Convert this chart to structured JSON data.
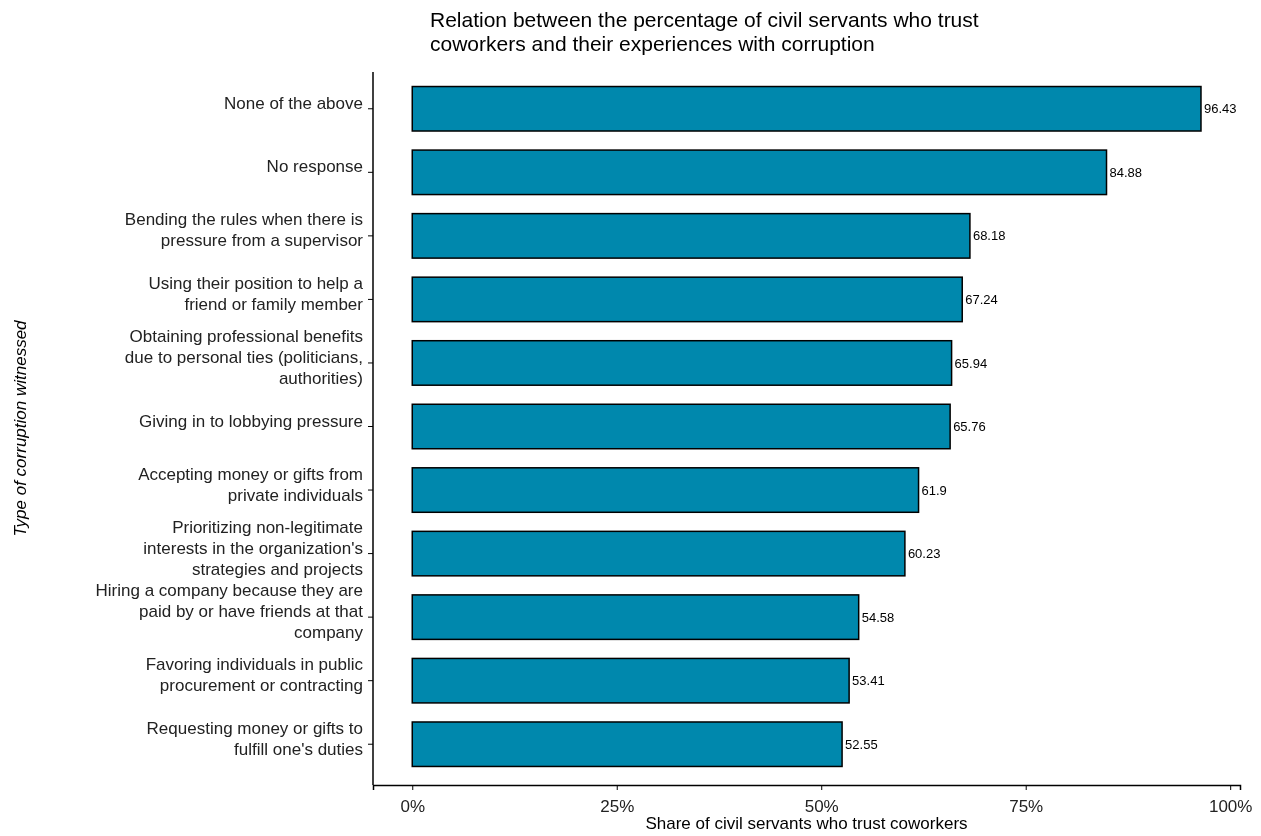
{
  "chart_data": {
    "type": "bar",
    "orientation": "horizontal",
    "title": "Relation between the percentage of civil servants who trust\ncoworkers and their experiences with corruption",
    "xlabel": "Share of civil servants who trust coworkers",
    "ylabel": "Type of corruption witnessed",
    "categories": [
      "None of the above",
      "No response",
      "Bending the rules when there is\npressure from a supervisor",
      "Using their position to help a\nfriend or family member",
      "Obtaining professional benefits\ndue to personal ties (politicians,\nauthorities)",
      "Giving in to lobbying pressure",
      "Accepting money or gifts from\nprivate individuals",
      "Prioritizing non-legitimate\ninterests in the organization's\nstrategies and projects",
      "Hiring a company because they are\npaid by or have friends at that\ncompany",
      "Favoring individuals in public\nprocurement or contracting",
      "Requesting money or gifts to\nfulfill one's duties"
    ],
    "values": [
      96.43,
      84.88,
      68.18,
      67.24,
      65.94,
      65.76,
      61.9,
      60.23,
      54.58,
      53.41,
      52.55
    ],
    "color": "#0088ad",
    "data_labels": true,
    "grid": false,
    "xlim": [
      -4.8,
      101.2
    ],
    "xticks": [
      {
        "value": 0,
        "label": "0%"
      },
      {
        "value": 25,
        "label": "25%"
      },
      {
        "value": 50,
        "label": "50%"
      },
      {
        "value": 75,
        "label": "75%"
      },
      {
        "value": 100,
        "label": "100%"
      }
    ]
  }
}
